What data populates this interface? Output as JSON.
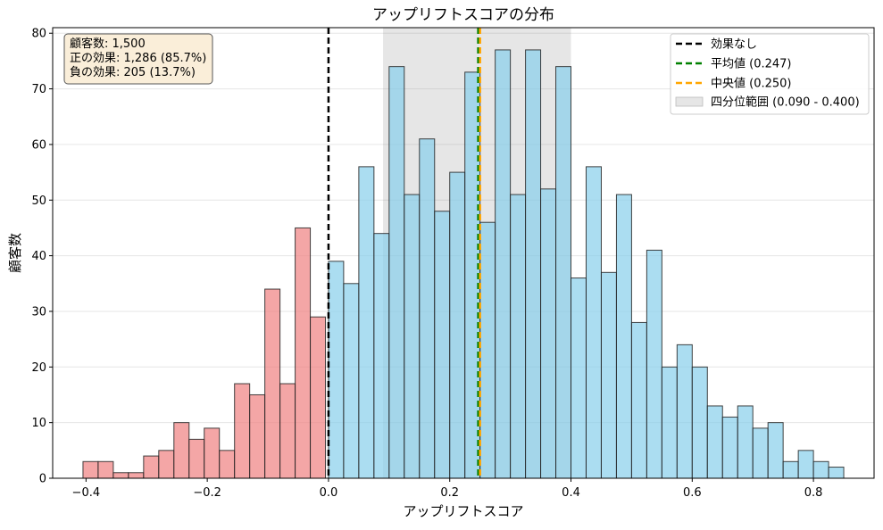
{
  "chart_data": {
    "type": "bar",
    "title": "アップリフトスコアの分布",
    "xlabel": "アップリフトスコア",
    "ylabel": "顧客数",
    "xlim": [
      -0.455,
      0.9
    ],
    "ylim": [
      0,
      81
    ],
    "x_ticks": [
      -0.4,
      -0.2,
      0.0,
      0.2,
      0.4,
      0.6,
      0.8
    ],
    "x_tick_labels": [
      "−0.4",
      "−0.2",
      "0.0",
      "0.2",
      "0.4",
      "0.6",
      "0.8"
    ],
    "y_ticks": [
      0,
      10,
      20,
      30,
      40,
      50,
      60,
      70,
      80
    ],
    "y_tick_labels": [
      "0",
      "10",
      "20",
      "30",
      "40",
      "50",
      "60",
      "70",
      "80"
    ],
    "grid": "horizontal",
    "bin_edges": [
      -0.405,
      -0.38,
      -0.355,
      -0.33,
      -0.305,
      -0.28,
      -0.255,
      -0.23,
      -0.205,
      -0.18,
      -0.155,
      -0.13,
      -0.105,
      -0.08,
      -0.055,
      -0.03,
      -0.005,
      0.0,
      0.025,
      0.05,
      0.075,
      0.1,
      0.125,
      0.15,
      0.175,
      0.2,
      0.225,
      0.25,
      0.275,
      0.3,
      0.325,
      0.35,
      0.375,
      0.4,
      0.425,
      0.45,
      0.475,
      0.5,
      0.525,
      0.55,
      0.575,
      0.6,
      0.625,
      0.65,
      0.675,
      0.7,
      0.725,
      0.75,
      0.775,
      0.8,
      0.825,
      0.85
    ],
    "series": [
      {
        "name": "負の効果",
        "color": "#f08080",
        "x_start": [
          -0.405,
          -0.38,
          -0.355,
          -0.33,
          -0.305,
          -0.28,
          -0.255,
          -0.23,
          -0.205,
          -0.18,
          -0.155,
          -0.13,
          -0.105,
          -0.08,
          -0.055,
          -0.03
        ],
        "x_end": [
          -0.38,
          -0.355,
          -0.33,
          -0.305,
          -0.28,
          -0.255,
          -0.23,
          -0.205,
          -0.18,
          -0.155,
          -0.13,
          -0.105,
          -0.08,
          -0.055,
          -0.03,
          -0.005
        ],
        "values": [
          3,
          3,
          1,
          1,
          4,
          5,
          10,
          7,
          9,
          5,
          17,
          15,
          34,
          17,
          45,
          29
        ]
      },
      {
        "name": "正の効果",
        "color": "#87ceeb",
        "x_start": [
          0.0,
          0.025,
          0.05,
          0.075,
          0.1,
          0.125,
          0.15,
          0.175,
          0.2,
          0.225,
          0.25,
          0.275,
          0.3,
          0.325,
          0.35,
          0.375,
          0.4,
          0.425,
          0.45,
          0.475,
          0.5,
          0.525,
          0.55,
          0.575,
          0.6,
          0.625,
          0.65,
          0.675,
          0.7,
          0.725,
          0.75,
          0.775,
          0.8,
          0.825
        ],
        "x_end": [
          0.025,
          0.05,
          0.075,
          0.1,
          0.125,
          0.15,
          0.175,
          0.2,
          0.225,
          0.25,
          0.275,
          0.3,
          0.325,
          0.35,
          0.375,
          0.4,
          0.425,
          0.45,
          0.475,
          0.5,
          0.525,
          0.55,
          0.575,
          0.6,
          0.625,
          0.65,
          0.675,
          0.7,
          0.725,
          0.75,
          0.775,
          0.8,
          0.825,
          0.85
        ],
        "values": [
          39,
          35,
          56,
          44,
          74,
          51,
          61,
          48,
          55,
          73,
          46,
          77,
          51,
          77,
          52,
          74,
          36,
          56,
          37,
          51,
          28,
          41,
          20,
          24,
          20,
          13,
          11,
          13,
          9,
          10,
          3,
          5,
          3,
          2
        ]
      }
    ],
    "reference_lines": [
      {
        "name": "効果なし",
        "label": "効果なし",
        "x": 0.0,
        "color": "#000000",
        "style": "dashed"
      },
      {
        "name": "平均値",
        "label": "平均値 (0.247)",
        "x": 0.247,
        "color": "#008000",
        "style": "dashed"
      },
      {
        "name": "中央値",
        "label": "中央値 (0.250)",
        "x": 0.25,
        "color": "#ffa500",
        "style": "dashed"
      }
    ],
    "shaded_range": {
      "label": "四分位範囲 (0.090 - 0.400)",
      "x_start": 0.09,
      "x_end": 0.4,
      "color": "#808080"
    },
    "stats_box": [
      "顧客数: 1,500",
      "正の効果: 1,286 (85.7%)",
      "負の効果: 205 (13.7%)"
    ],
    "legend_position": "upper-right",
    "stats_position": "upper-left"
  }
}
